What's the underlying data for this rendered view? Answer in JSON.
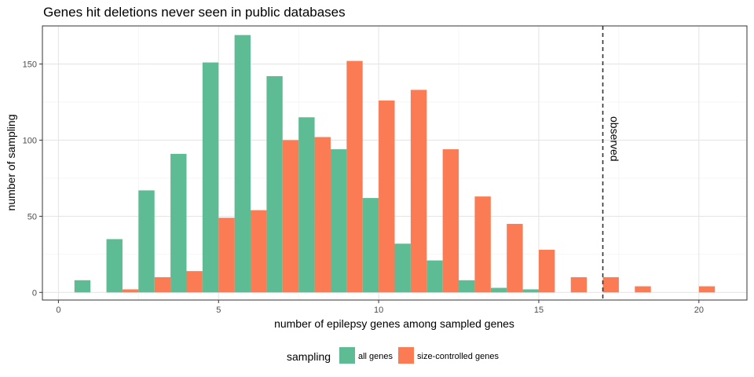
{
  "chart_data": {
    "type": "bar",
    "title": "Genes hit deletions never seen in public databases",
    "xlabel": "number of epilepsy genes among sampled genes",
    "ylabel": "number of sampling",
    "xlim": [
      -0.5,
      21.5
    ],
    "ylim": [
      -5,
      175
    ],
    "x_ticks": [
      0,
      5,
      10,
      15,
      20
    ],
    "y_ticks": [
      0,
      50,
      100,
      150
    ],
    "grid": true,
    "legend": {
      "title": "sampling",
      "position": "bottom"
    },
    "series": [
      {
        "name": "all genes",
        "color": "#5DBC93",
        "x": [
          1,
          2,
          3,
          4,
          5,
          6,
          7,
          8,
          9,
          10,
          11,
          12,
          13,
          14,
          15
        ],
        "values": [
          8,
          35,
          67,
          91,
          151,
          169,
          142,
          115,
          94,
          62,
          32,
          21,
          8,
          3,
          2
        ]
      },
      {
        "name": "size-controlled genes",
        "color": "#FA7B54",
        "x": [
          2,
          3,
          4,
          5,
          6,
          7,
          8,
          9,
          10,
          11,
          12,
          13,
          14,
          15,
          16,
          17,
          18,
          20
        ],
        "values": [
          2,
          10,
          14,
          49,
          54,
          100,
          102,
          152,
          126,
          133,
          94,
          63,
          45,
          28,
          10,
          10,
          4,
          4
        ]
      }
    ],
    "vline": {
      "x": 17,
      "label": "observed"
    }
  }
}
